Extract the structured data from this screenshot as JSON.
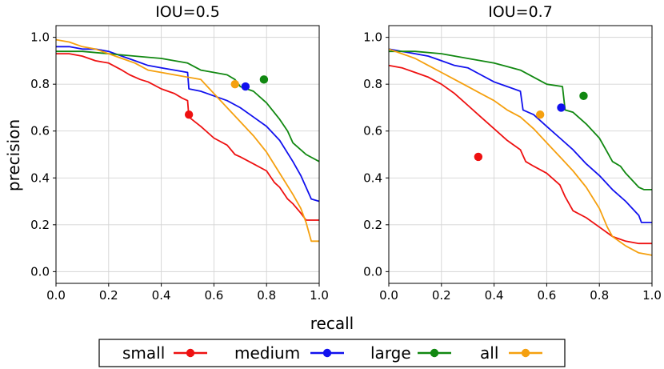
{
  "chart_data": [
    {
      "type": "line",
      "title": "IOU=0.5",
      "xlabel": "recall",
      "ylabel": "precision",
      "xlim": [
        0,
        1
      ],
      "ylim": [
        -0.05,
        1.05
      ],
      "xticks": [
        "0.0",
        "0.2",
        "0.4",
        "0.6",
        "0.8",
        "1.0"
      ],
      "yticks": [
        "0.0",
        "0.2",
        "0.4",
        "0.6",
        "0.8",
        "1.0"
      ],
      "grid": true,
      "series": [
        {
          "name": "small",
          "color": "#ee1111",
          "x": [
            0.0,
            0.05,
            0.1,
            0.15,
            0.2,
            0.25,
            0.28,
            0.32,
            0.35,
            0.4,
            0.45,
            0.48,
            0.5,
            0.505,
            0.55,
            0.6,
            0.65,
            0.68,
            0.7,
            0.75,
            0.8,
            0.83,
            0.85,
            0.88,
            0.9,
            0.93,
            0.95,
            1.0
          ],
          "y": [
            0.93,
            0.93,
            0.92,
            0.9,
            0.89,
            0.86,
            0.84,
            0.82,
            0.81,
            0.78,
            0.76,
            0.74,
            0.73,
            0.66,
            0.62,
            0.57,
            0.54,
            0.5,
            0.49,
            0.46,
            0.43,
            0.38,
            0.36,
            0.31,
            0.29,
            0.25,
            0.22,
            0.22
          ],
          "point": [
            0.505,
            0.67
          ]
        },
        {
          "name": "medium",
          "color": "#1111ee",
          "x": [
            0.0,
            0.05,
            0.1,
            0.15,
            0.2,
            0.25,
            0.3,
            0.35,
            0.4,
            0.45,
            0.5,
            0.505,
            0.55,
            0.6,
            0.65,
            0.7,
            0.75,
            0.8,
            0.85,
            0.9,
            0.93,
            0.95,
            0.97,
            1.0
          ],
          "y": [
            0.96,
            0.96,
            0.95,
            0.95,
            0.94,
            0.92,
            0.9,
            0.88,
            0.87,
            0.86,
            0.85,
            0.78,
            0.77,
            0.75,
            0.73,
            0.7,
            0.66,
            0.62,
            0.56,
            0.47,
            0.41,
            0.36,
            0.31,
            0.3
          ],
          "point": [
            0.72,
            0.79
          ]
        },
        {
          "name": "large",
          "color": "#118811",
          "x": [
            0.0,
            0.1,
            0.2,
            0.3,
            0.4,
            0.5,
            0.55,
            0.6,
            0.65,
            0.68,
            0.7,
            0.75,
            0.8,
            0.85,
            0.88,
            0.9,
            0.95,
            1.0
          ],
          "y": [
            0.94,
            0.94,
            0.93,
            0.92,
            0.91,
            0.89,
            0.86,
            0.85,
            0.84,
            0.82,
            0.79,
            0.77,
            0.72,
            0.65,
            0.6,
            0.55,
            0.5,
            0.47
          ],
          "point": [
            0.79,
            0.82
          ]
        },
        {
          "name": "all",
          "color": "#f5a00f",
          "x": [
            0.0,
            0.05,
            0.1,
            0.15,
            0.2,
            0.25,
            0.3,
            0.35,
            0.4,
            0.45,
            0.5,
            0.55,
            0.6,
            0.65,
            0.7,
            0.75,
            0.8,
            0.85,
            0.9,
            0.93,
            0.95,
            0.97,
            1.0
          ],
          "y": [
            0.99,
            0.98,
            0.96,
            0.95,
            0.93,
            0.91,
            0.89,
            0.86,
            0.85,
            0.84,
            0.83,
            0.82,
            0.76,
            0.7,
            0.64,
            0.58,
            0.51,
            0.42,
            0.33,
            0.27,
            0.21,
            0.13,
            0.13
          ],
          "point": [
            0.68,
            0.8
          ]
        }
      ]
    },
    {
      "type": "line",
      "title": "IOU=0.7",
      "xlabel": "recall",
      "ylabel": "precision",
      "xlim": [
        0,
        1
      ],
      "ylim": [
        -0.05,
        1.05
      ],
      "xticks": [
        "0.0",
        "0.2",
        "0.4",
        "0.6",
        "0.8",
        "1.0"
      ],
      "yticks": [
        "0.0",
        "0.2",
        "0.4",
        "0.6",
        "0.8",
        "1.0"
      ],
      "grid": true,
      "series": [
        {
          "name": "small",
          "color": "#ee1111",
          "x": [
            0.0,
            0.05,
            0.1,
            0.15,
            0.2,
            0.25,
            0.3,
            0.35,
            0.4,
            0.45,
            0.5,
            0.52,
            0.55,
            0.6,
            0.65,
            0.67,
            0.7,
            0.75,
            0.8,
            0.85,
            0.9,
            0.95,
            1.0
          ],
          "y": [
            0.88,
            0.87,
            0.85,
            0.83,
            0.8,
            0.76,
            0.71,
            0.66,
            0.61,
            0.56,
            0.52,
            0.47,
            0.45,
            0.42,
            0.37,
            0.32,
            0.26,
            0.23,
            0.19,
            0.15,
            0.13,
            0.12,
            0.12
          ],
          "point": [
            0.34,
            0.49
          ]
        },
        {
          "name": "medium",
          "color": "#1111ee",
          "x": [
            0.0,
            0.05,
            0.1,
            0.15,
            0.2,
            0.25,
            0.3,
            0.35,
            0.4,
            0.45,
            0.5,
            0.51,
            0.55,
            0.6,
            0.65,
            0.7,
            0.75,
            0.8,
            0.85,
            0.9,
            0.95,
            0.96,
            1.0
          ],
          "y": [
            0.95,
            0.94,
            0.93,
            0.92,
            0.9,
            0.88,
            0.87,
            0.84,
            0.81,
            0.79,
            0.77,
            0.69,
            0.67,
            0.62,
            0.57,
            0.52,
            0.46,
            0.41,
            0.35,
            0.3,
            0.24,
            0.21,
            0.21
          ],
          "point": [
            0.655,
            0.7
          ]
        },
        {
          "name": "large",
          "color": "#118811",
          "x": [
            0.0,
            0.1,
            0.2,
            0.3,
            0.4,
            0.5,
            0.6,
            0.66,
            0.67,
            0.7,
            0.75,
            0.8,
            0.83,
            0.85,
            0.88,
            0.9,
            0.95,
            0.97,
            1.0
          ],
          "y": [
            0.94,
            0.94,
            0.93,
            0.91,
            0.89,
            0.86,
            0.8,
            0.79,
            0.69,
            0.68,
            0.63,
            0.57,
            0.51,
            0.47,
            0.45,
            0.42,
            0.36,
            0.35,
            0.35
          ],
          "point": [
            0.74,
            0.75
          ]
        },
        {
          "name": "all",
          "color": "#f5a00f",
          "x": [
            0.0,
            0.05,
            0.1,
            0.15,
            0.2,
            0.25,
            0.3,
            0.35,
            0.4,
            0.45,
            0.5,
            0.55,
            0.6,
            0.65,
            0.7,
            0.75,
            0.8,
            0.83,
            0.85,
            0.9,
            0.95,
            1.0
          ],
          "y": [
            0.95,
            0.93,
            0.91,
            0.88,
            0.85,
            0.82,
            0.79,
            0.76,
            0.73,
            0.69,
            0.66,
            0.61,
            0.55,
            0.49,
            0.43,
            0.36,
            0.27,
            0.19,
            0.15,
            0.11,
            0.08,
            0.07
          ],
          "point": [
            0.575,
            0.67
          ]
        }
      ]
    }
  ],
  "figure": {
    "xlabel": "recall",
    "ylabel": "precision"
  },
  "legend": {
    "placement": "bottom-center",
    "items": [
      {
        "label": "small",
        "color": "#ee1111"
      },
      {
        "label": "medium",
        "color": "#1111ee"
      },
      {
        "label": "large",
        "color": "#118811"
      },
      {
        "label": "all",
        "color": "#f5a00f"
      }
    ]
  }
}
